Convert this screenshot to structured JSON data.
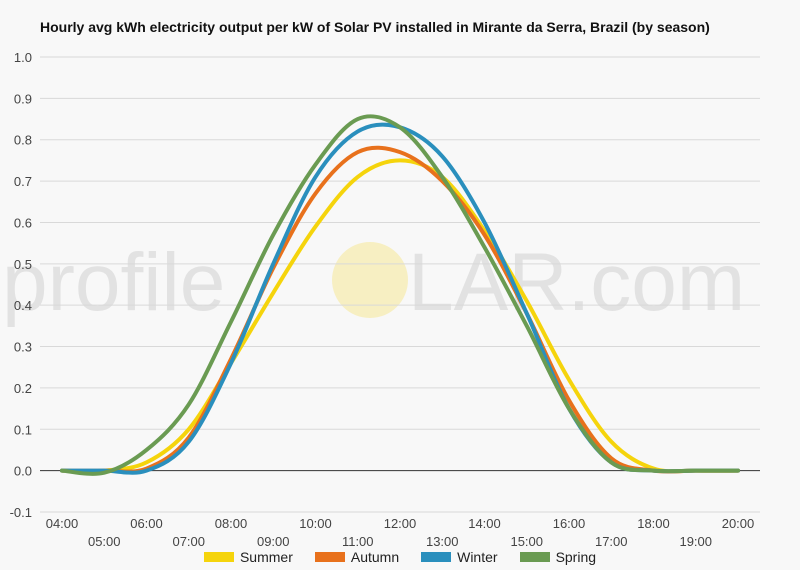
{
  "chart_data": {
    "type": "line",
    "title": "Hourly avg kWh electricity output per kW of Solar PV installed in Mirante da Serra, Brazil (by season)",
    "xlabel": "",
    "ylabel": "",
    "x": [
      "04:00",
      "05:00",
      "06:00",
      "07:00",
      "08:00",
      "09:00",
      "10:00",
      "11:00",
      "12:00",
      "13:00",
      "14:00",
      "15:00",
      "16:00",
      "17:00",
      "18:00",
      "19:00",
      "20:00"
    ],
    "ylim": [
      -0.1,
      1.0
    ],
    "yticks": [
      "-0.1",
      "0.0",
      "0.1",
      "0.2",
      "0.3",
      "0.4",
      "0.5",
      "0.6",
      "0.7",
      "0.8",
      "0.9",
      "1.0"
    ],
    "grid": true,
    "legend_position": "bottom",
    "series": [
      {
        "name": "Summer",
        "color": "#f5d40c",
        "values": [
          0.0,
          0.0,
          0.02,
          0.1,
          0.26,
          0.43,
          0.59,
          0.71,
          0.75,
          0.71,
          0.58,
          0.41,
          0.22,
          0.07,
          0.005,
          0.0,
          0.0
        ]
      },
      {
        "name": "Autumn",
        "color": "#e8711c",
        "values": [
          0.0,
          0.0,
          0.005,
          0.08,
          0.27,
          0.49,
          0.67,
          0.77,
          0.77,
          0.7,
          0.57,
          0.38,
          0.17,
          0.03,
          0.0,
          0.0,
          0.0
        ]
      },
      {
        "name": "Winter",
        "color": "#2a8fbd",
        "values": [
          0.0,
          0.0,
          0.0,
          0.07,
          0.26,
          0.5,
          0.71,
          0.82,
          0.83,
          0.76,
          0.6,
          0.38,
          0.15,
          0.02,
          0.0,
          0.0,
          0.0
        ]
      },
      {
        "name": "Spring",
        "color": "#6a9b52",
        "values": [
          0.0,
          -0.005,
          0.05,
          0.16,
          0.36,
          0.57,
          0.74,
          0.85,
          0.83,
          0.71,
          0.54,
          0.35,
          0.15,
          0.02,
          0.0,
          0.0,
          0.0
        ]
      }
    ]
  },
  "watermark": {
    "left_text": "profile",
    "right_text": "LAR.com",
    "color": "#e2e2e2",
    "sun_color": "#f7efc2"
  }
}
